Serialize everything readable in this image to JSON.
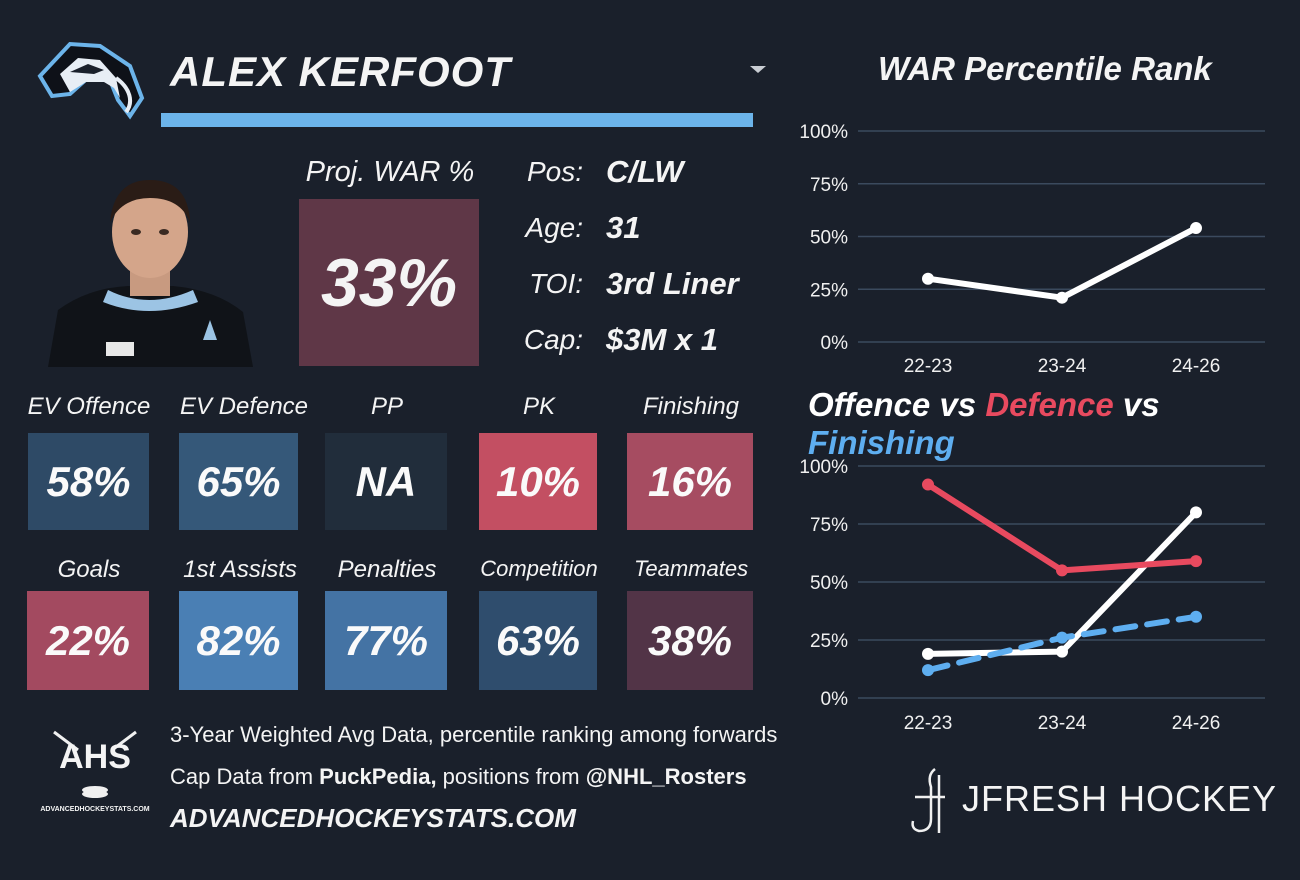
{
  "player": {
    "name": "ALEX KERFOOT"
  },
  "proj_war": {
    "label": "Proj. WAR %",
    "value": "33%",
    "color": "#5f3747"
  },
  "info": [
    {
      "label": "Pos:",
      "value": "C/LW"
    },
    {
      "label": "Age:",
      "value": "31"
    },
    {
      "label": "TOI:",
      "value": "3rd Liner"
    },
    {
      "label": "Cap:",
      "value": "$3M x 1"
    }
  ],
  "stats_row1": [
    {
      "label": "EV Offence",
      "value": "58%",
      "color": "#2e4a66"
    },
    {
      "label": "EV Defence",
      "value": "65%",
      "color": "#355879"
    },
    {
      "label": "PP",
      "value": "NA",
      "color": "#212d3b"
    },
    {
      "label": "PK",
      "value": "10%",
      "color": "#c34f62"
    },
    {
      "label": "Finishing",
      "value": "16%",
      "color": "#a64c61"
    }
  ],
  "stats_row2": [
    {
      "label": "Goals",
      "value": "22%",
      "color": "#a34a60"
    },
    {
      "label": "1st Assists",
      "value": "82%",
      "color": "#4a7fb4"
    },
    {
      "label": "Penalties",
      "value": "77%",
      "color": "#4473a4"
    },
    {
      "label": "Competition",
      "value": "63%",
      "color": "#2f4d6d"
    },
    {
      "label": "Teammates",
      "value": "38%",
      "color": "#523447"
    }
  ],
  "footer": {
    "line1": "3-Year Weighted Avg Data, percentile ranking among forwards",
    "line2_pre": "Cap Data from ",
    "line2_bold1": "PuckPedia,",
    "line2_mid": " positions from ",
    "line2_bold2": "@NHL_Rosters",
    "site": "ADVANCEDHOCKEYSTATS.COM",
    "ahs_logo_text": "AHS",
    "ahs_logo_sub": "ADVANCEDHOCKEYSTATS.COM",
    "jfresh": "JFRESH HOCKEY"
  },
  "chart_data": [
    {
      "type": "line",
      "title": "WAR Percentile Rank",
      "categories": [
        "22-23",
        "23-24",
        "24-26"
      ],
      "series": [
        {
          "values": [
            30,
            21,
            54
          ],
          "color": "#ffffff"
        }
      ],
      "ylim": [
        0,
        100
      ],
      "yticks": [
        "0%",
        "25%",
        "50%",
        "75%",
        "100%"
      ],
      "grid": true
    },
    {
      "type": "line",
      "title_parts": [
        {
          "text": "Offence",
          "color": "#ffffff"
        },
        {
          "text": " vs ",
          "color": "#ffffff"
        },
        {
          "text": "Defence",
          "color": "#e84a5f"
        },
        {
          "text": " vs ",
          "color": "#ffffff"
        },
        {
          "text": "Finishing",
          "color": "#5eaef0"
        }
      ],
      "categories": [
        "22-23",
        "23-24",
        "24-26"
      ],
      "series": [
        {
          "name": "Offence",
          "values": [
            19,
            20,
            80
          ],
          "color": "#ffffff",
          "dashed": false
        },
        {
          "name": "Defence",
          "values": [
            92,
            55,
            59
          ],
          "color": "#e84a5f",
          "dashed": false
        },
        {
          "name": "Finishing",
          "values": [
            12,
            26,
            35
          ],
          "color": "#5eaef0",
          "dashed": true
        }
      ],
      "ylim": [
        0,
        100
      ],
      "yticks": [
        "0%",
        "25%",
        "50%",
        "75%",
        "100%"
      ],
      "grid": true
    }
  ]
}
